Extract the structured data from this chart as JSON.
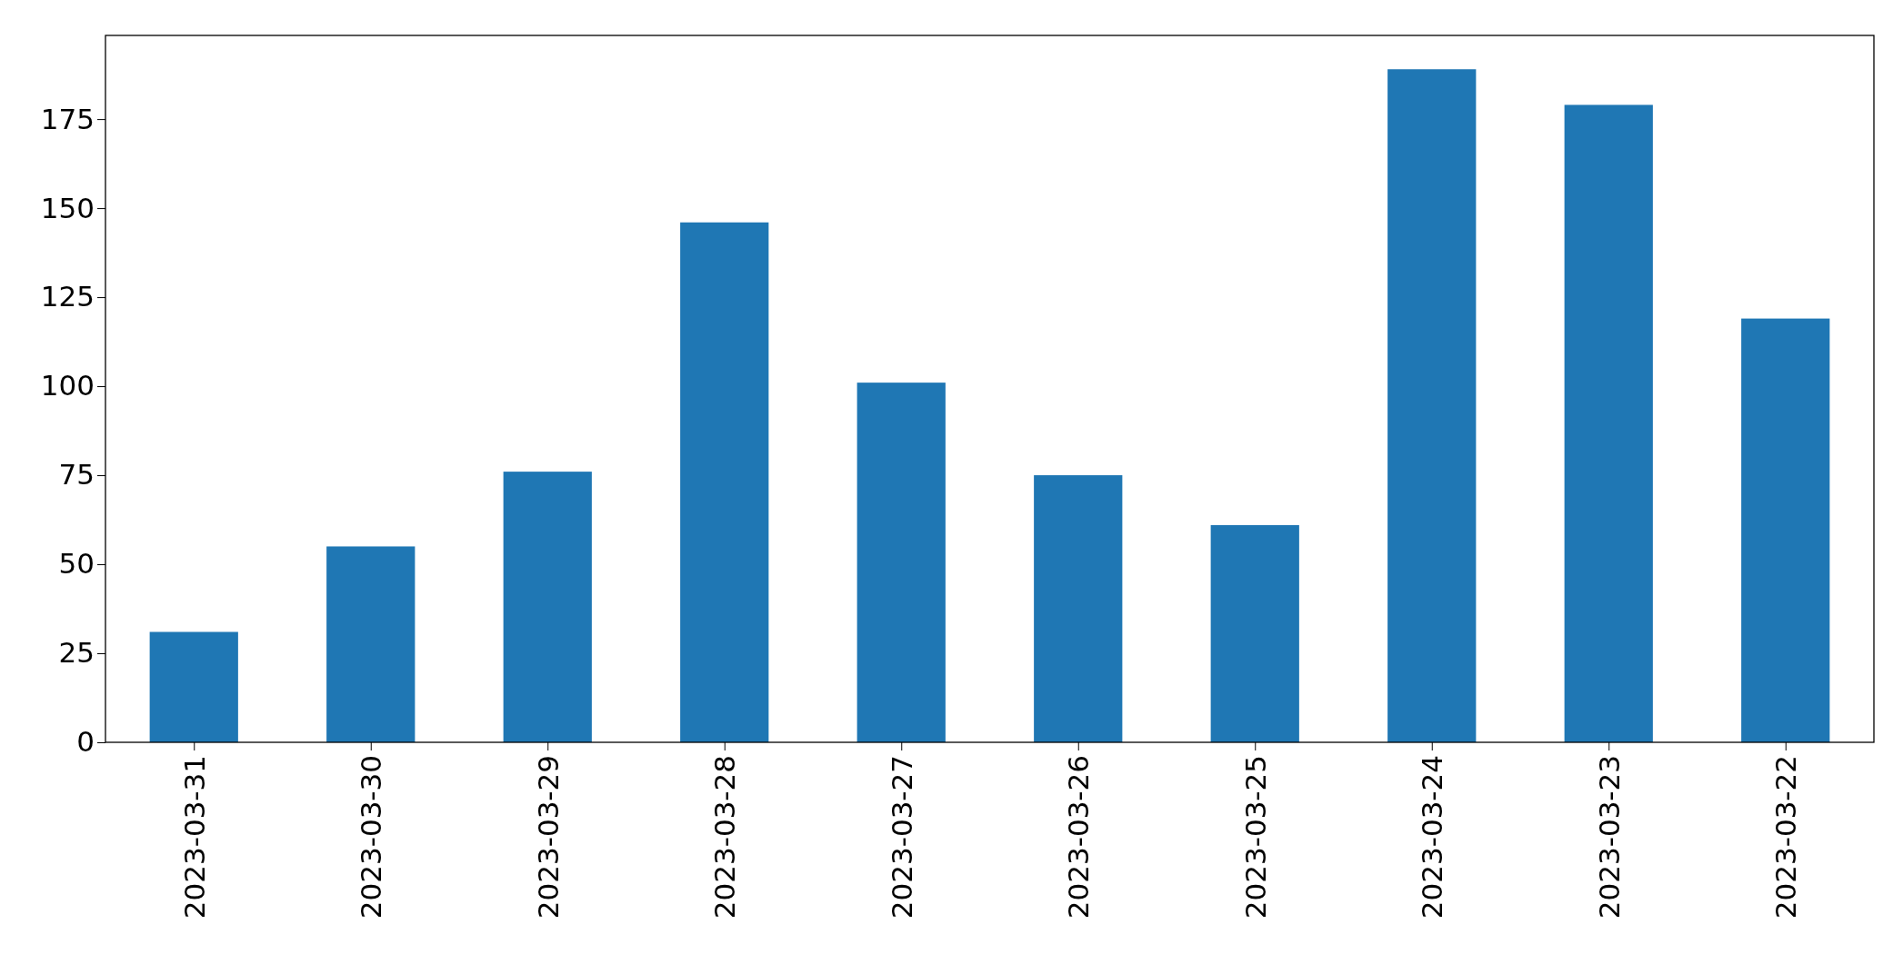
{
  "chart_data": {
    "type": "bar",
    "categories": [
      "2023-03-31",
      "2023-03-30",
      "2023-03-29",
      "2023-03-28",
      "2023-03-27",
      "2023-03-26",
      "2023-03-25",
      "2023-03-24",
      "2023-03-23",
      "2023-03-22"
    ],
    "values": [
      31,
      55,
      76,
      146,
      101,
      75,
      61,
      189,
      179,
      119
    ],
    "color": "#1f77b4",
    "ylim": [
      0,
      198.5
    ],
    "yticks": [
      0,
      25,
      50,
      75,
      100,
      125,
      150,
      175
    ]
  }
}
